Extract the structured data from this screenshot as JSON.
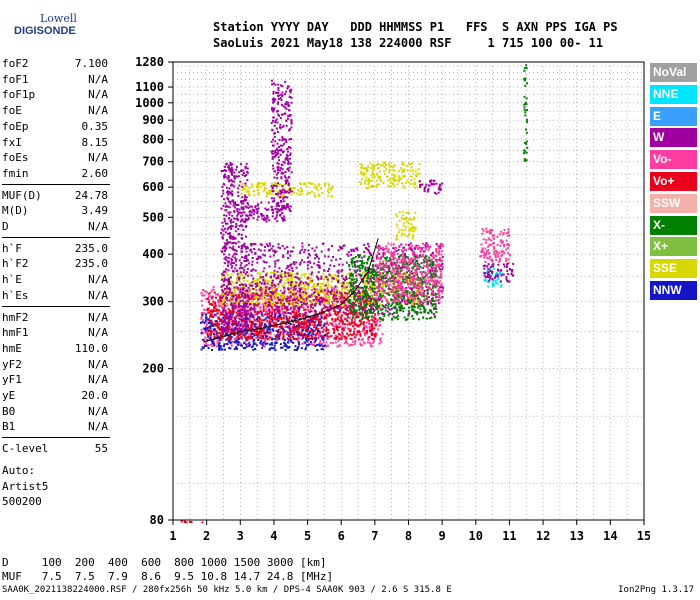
{
  "header": {
    "logo_line1": "Lowell",
    "logo_line2": "DIGISONDE",
    "labels": "Station YYYY DAY   DDD HHMMSS P1   FFS  S AXN PPS IGA PS",
    "values": "SaoLuis 2021 May18 138 224000 RSF     1 715 100 00- 11"
  },
  "params": [
    {
      "name": "foF2",
      "value": "7.100"
    },
    {
      "name": "foF1",
      "value": "N/A"
    },
    {
      "name": "foF1p",
      "value": "N/A"
    },
    {
      "name": "foE",
      "value": "N/A"
    },
    {
      "name": "foEp",
      "value": "0.35"
    },
    {
      "name": "fxI",
      "value": "8.15"
    },
    {
      "name": "foEs",
      "value": "N/A"
    },
    {
      "name": "fmin",
      "value": "2.60"
    },
    {
      "name": "MUF(D)",
      "value": "24.78"
    },
    {
      "name": "M(D)",
      "value": "3.49"
    },
    {
      "name": "D",
      "value": "N/A"
    },
    {
      "name": "h`F",
      "value": "235.0"
    },
    {
      "name": "h`F2",
      "value": "235.0"
    },
    {
      "name": "h`E",
      "value": "N/A"
    },
    {
      "name": "h`Es",
      "value": "N/A"
    },
    {
      "name": "hmF2",
      "value": "N/A"
    },
    {
      "name": "hmF1",
      "value": "N/A"
    },
    {
      "name": "hmE",
      "value": "110.0"
    },
    {
      "name": "yF2",
      "value": "N/A"
    },
    {
      "name": "yF1",
      "value": "N/A"
    },
    {
      "name": "yE",
      "value": "20.0"
    },
    {
      "name": "B0",
      "value": "N/A"
    },
    {
      "name": "B1",
      "value": "N/A"
    },
    {
      "name": "C-level",
      "value": "55"
    }
  ],
  "auto": [
    "Auto:",
    "Artist5",
    "500200"
  ],
  "legend": [
    {
      "label": "NoVal",
      "color": "#a0a0a0"
    },
    {
      "label": "NNE",
      "color": "#00e5ff"
    },
    {
      "label": "E",
      "color": "#3aa0ff"
    },
    {
      "label": "W",
      "color": "#a000a0"
    },
    {
      "label": "Vo-",
      "color": "#ff3ca0"
    },
    {
      "label": "Vo+",
      "color": "#e8001c"
    },
    {
      "label": "SSW",
      "color": "#f2b0a8"
    },
    {
      "label": "X-",
      "color": "#008000"
    },
    {
      "label": "X+",
      "color": "#80c040"
    },
    {
      "label": "SSE",
      "color": "#d8d800"
    },
    {
      "label": "NNW",
      "color": "#1414c8"
    }
  ],
  "footer": {
    "d_line": "D     100  200  400  600  800 1000 1500 3000 [km]",
    "muf_line": "MUF   7.5  7.5  7.9  8.6  9.5 10.8 14.7 24.8 [MHz]",
    "file_line": "SAA0K_2021138224000.RSF / 280fx256h 50 kHz 5.0 km / DPS-4 SAA0K 903 / 2.6 S 315.8 E",
    "version": "Ion2Png 1.3.17"
  },
  "chart_data": {
    "type": "scatter",
    "title": "",
    "xlabel": "",
    "ylabel": "",
    "xlim": [
      1,
      15
    ],
    "ylim": [
      80,
      1280
    ],
    "y_scale": "log",
    "x_ticks": [
      1,
      2,
      3,
      4,
      5,
      6,
      7,
      8,
      9,
      10,
      11,
      12,
      13,
      14,
      15
    ],
    "y_ticks": [
      80,
      200,
      300,
      400,
      500,
      600,
      700,
      800,
      900,
      1000,
      1100,
      1280
    ],
    "grid": true,
    "legend_position": "right",
    "trace_profile": {
      "x": [
        1.9,
        2.3,
        3.0,
        3.6,
        4.2,
        4.8,
        5.4,
        6.0,
        6.4,
        6.8,
        7.1
      ],
      "y": [
        235,
        240,
        250,
        255,
        262,
        270,
        280,
        295,
        320,
        360,
        440
      ]
    },
    "clusters": [
      {
        "color_code": "Vo-",
        "x": [
          1.8,
          7.2
        ],
        "y": [
          230,
          330
        ]
      },
      {
        "color_code": "NNW",
        "x": [
          1.8,
          5.5
        ],
        "y": [
          225,
          280
        ]
      },
      {
        "color_code": "Vo+",
        "x": [
          2.0,
          7.0
        ],
        "y": [
          240,
          320
        ]
      },
      {
        "color_code": "SSE",
        "x": [
          2.4,
          8.4
        ],
        "y": [
          295,
          360
        ]
      },
      {
        "color_code": "W",
        "x": [
          3.0,
          9.0
        ],
        "y": [
          280,
          430
        ]
      },
      {
        "color_code": "X-",
        "x": [
          6.2,
          8.8
        ],
        "y": [
          270,
          400
        ]
      },
      {
        "color_code": "Vo-",
        "x": [
          7.0,
          9.0
        ],
        "y": [
          300,
          430
        ]
      },
      {
        "color_code": "SSE",
        "x": [
          7.6,
          8.2
        ],
        "y": [
          440,
          520
        ]
      },
      {
        "color_code": "SSE",
        "x": [
          3.0,
          5.8
        ],
        "y": [
          570,
          620
        ]
      },
      {
        "color_code": "SSE",
        "x": [
          6.5,
          8.3
        ],
        "y": [
          600,
          700
        ]
      },
      {
        "color_code": "W",
        "x": [
          3.0,
          4.3
        ],
        "y": [
          490,
          550
        ]
      },
      {
        "color_code": "W",
        "x": [
          8.3,
          9.0
        ],
        "y": [
          580,
          630
        ]
      },
      {
        "color_code": "W",
        "x": [
          2.4,
          3.2
        ],
        "y": [
          250,
          700
        ]
      },
      {
        "color_code": "W",
        "x": [
          3.9,
          4.5
        ],
        "y": [
          520,
          1150
        ]
      },
      {
        "color_code": "Vo-",
        "x": [
          10.1,
          11.0
        ],
        "y": [
          380,
          470
        ]
      },
      {
        "color_code": "NNE",
        "x": [
          10.2,
          10.8
        ],
        "y": [
          330,
          370
        ]
      },
      {
        "color_code": "W",
        "x": [
          10.2,
          11.1
        ],
        "y": [
          340,
          380
        ]
      },
      {
        "color_code": "X-",
        "x": [
          11.4,
          11.5
        ],
        "y": [
          700,
          1280
        ]
      },
      {
        "color_code": "Vo+",
        "x": [
          1.0,
          1.9
        ],
        "y": [
          80,
          80
        ]
      }
    ]
  }
}
